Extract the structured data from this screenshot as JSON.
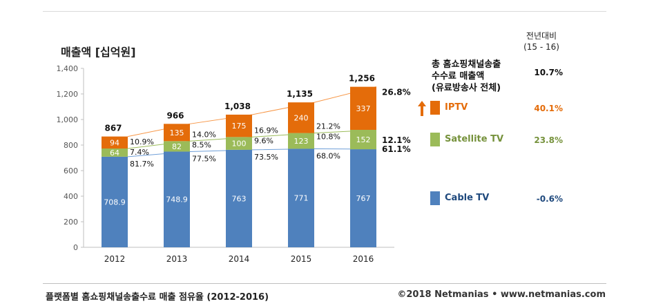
{
  "title": "매출액 [십억원]",
  "footer": {
    "caption": "플랫폼별 홈쇼핑채널송출수료 매출 점유율 (2012-2016)",
    "copyright": "©2018 Netmanias • www.netmanias.com"
  },
  "yoy": {
    "header_line1": "전년대비",
    "header_line2": "(15 - 16)",
    "total_line1": "총 홈쇼핑채널송출",
    "total_line2": "수수료 매출액",
    "total_line3": "(유료방송사 전체)",
    "total_value": "10.7%",
    "iptv_value": "40.1%",
    "satellite_value": "23.8%",
    "cable_value": "-0.6%"
  },
  "colors": {
    "cable": "#4f81bd",
    "satellite": "#9bbb59",
    "iptv": "#e46c0a",
    "cable_line": "#6f9fd8",
    "satellite_line": "#9bbb59",
    "iptv_line": "#f79646",
    "arrow": "#e46c0a"
  },
  "chart_data": {
    "type": "bar",
    "stacked": true,
    "categories": [
      "2012",
      "2013",
      "2014",
      "2015",
      "2016"
    ],
    "series": [
      {
        "name": "Cable TV",
        "values": [
          708.9,
          748.9,
          763,
          771,
          767
        ],
        "labels": [
          "708.9",
          "748.9",
          "763",
          "771",
          "767"
        ]
      },
      {
        "name": "Satellite TV",
        "values": [
          64,
          82,
          100,
          123,
          152
        ],
        "labels": [
          "64",
          "82",
          "100",
          "123",
          "152"
        ]
      },
      {
        "name": "IPTV",
        "values": [
          94,
          135,
          175,
          240,
          337
        ],
        "labels": [
          "94",
          "135",
          "175",
          "240",
          "337"
        ]
      }
    ],
    "totals": [
      867,
      966,
      1038,
      1135,
      1256
    ],
    "total_labels": [
      "867",
      "966",
      "1,038",
      "1,135",
      "1,256"
    ],
    "share_labels": {
      "Cable TV": [
        "81.7%",
        "77.5%",
        "73.5%",
        "68.0%",
        "61.1%"
      ],
      "Satellite TV": [
        "7.4%",
        "8.5%",
        "9.6%",
        "10.8%",
        "12.1%"
      ],
      "IPTV": [
        "10.9%",
        "14.0%",
        "16.9%",
        "21.2%",
        "26.8%"
      ]
    },
    "y_ticks": [
      "0",
      "200",
      "400",
      "600",
      "800",
      "1,000",
      "1,200",
      "1,400"
    ],
    "ylim": [
      0,
      1400
    ],
    "ystep": 200,
    "grid": false,
    "legend": "right"
  }
}
